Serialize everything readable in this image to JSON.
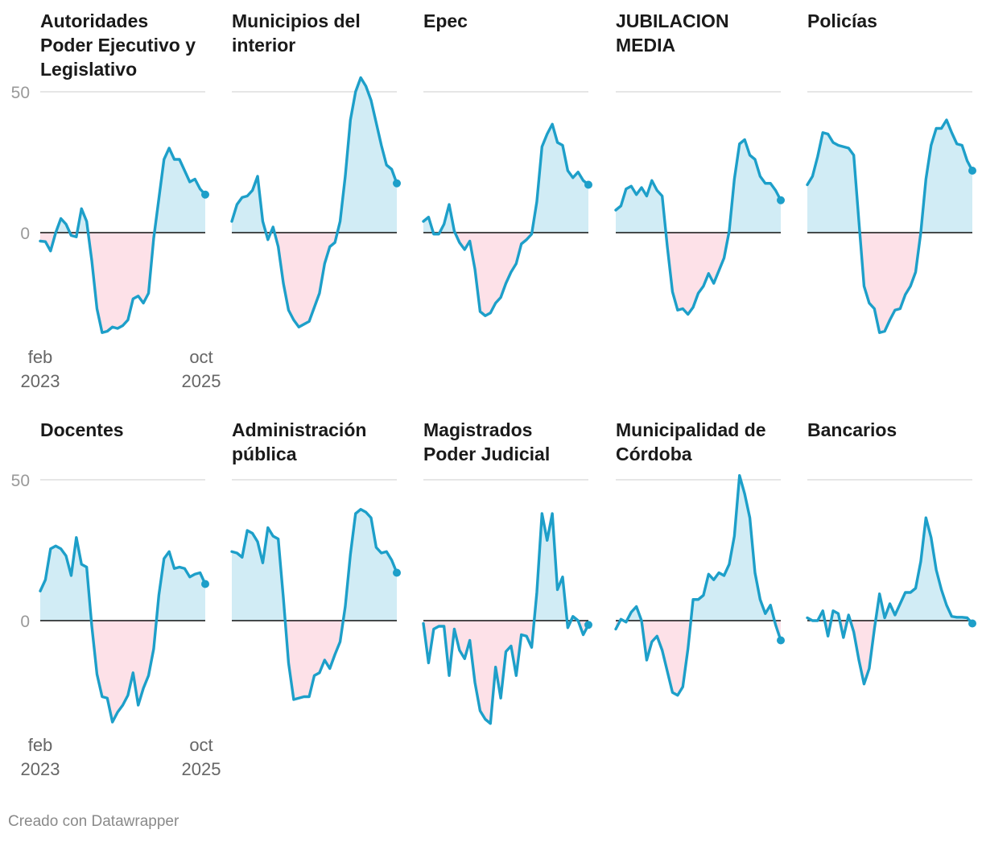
{
  "footer": "Creado con Datawrapper",
  "chart_data": {
    "type": "area",
    "ylim": [
      -40,
      50
    ],
    "y_ticks": [
      50,
      0
    ],
    "x_tick_labels": [
      {
        "month": "feb",
        "year": "2023"
      },
      {
        "month": "oct",
        "year": "2025"
      }
    ],
    "colors": {
      "line": "#1d9fc9",
      "positive_fill": "#d1ecf5",
      "negative_fill": "#fde1e8",
      "zero_line": "#111111",
      "grid": "#dddddd",
      "tick_text": "#999999",
      "axis_text": "#666666",
      "title_text": "#1a1a1a"
    },
    "panels": [
      {
        "title_lines": [
          "Autoridades",
          "Poder Ejecutivo y",
          "Legislativo"
        ],
        "values": [
          -3,
          -3.2,
          -6.5,
          0,
          5,
          3,
          -1,
          -1.5,
          8.5,
          4,
          -10,
          -27,
          -35.5,
          -35,
          -33.5,
          -34,
          -33,
          -31,
          -23.5,
          -22.5,
          -25,
          -21.5,
          -2,
          12,
          26,
          30,
          26,
          26,
          22,
          18,
          19,
          15.5,
          13.5
        ]
      },
      {
        "title_lines": [
          "Municipios del",
          "interior"
        ],
        "values": [
          4,
          10,
          12.5,
          13,
          15,
          20,
          4,
          -2.5,
          2,
          -5,
          -18,
          -27.5,
          -31,
          -33.5,
          -32.5,
          -31.5,
          -26.5,
          -21.5,
          -11,
          -5,
          -3.5,
          4,
          20,
          40,
          50,
          55,
          52,
          47,
          39,
          31,
          24,
          22.5,
          17.5
        ]
      },
      {
        "title_lines": [
          "Epec"
        ],
        "values": [
          4,
          5.5,
          -0.5,
          -0.5,
          3,
          10,
          0.5,
          -3.5,
          -6,
          -3,
          -13,
          -28,
          -29.5,
          -28.5,
          -25,
          -23,
          -18,
          -14,
          -11,
          -4,
          -2.5,
          -0.5,
          11,
          30.5,
          35,
          38.5,
          32,
          31,
          22,
          19.5,
          21.5,
          18.5,
          17
        ]
      },
      {
        "title_lines": [
          "JUBILACION",
          "MEDIA"
        ],
        "values": [
          8,
          9.5,
          15.5,
          16.5,
          13.5,
          16,
          13,
          18.5,
          15,
          13,
          -5,
          -21,
          -27.5,
          -27,
          -29,
          -26.5,
          -21.5,
          -19,
          -14.5,
          -18,
          -13.5,
          -9,
          0.5,
          19,
          31.5,
          33,
          27.5,
          26,
          20,
          17.5,
          17.5,
          15,
          11.5
        ]
      },
      {
        "title_lines": [
          "Policías"
        ],
        "values": [
          17,
          20,
          27,
          35.5,
          35,
          32,
          31,
          30.5,
          30,
          27.5,
          4,
          -19,
          -25,
          -27,
          -35.5,
          -35,
          -31,
          -27.5,
          -27,
          -22,
          -19,
          -14,
          0,
          19,
          31,
          37,
          37,
          40,
          35.5,
          31.5,
          31,
          25.5,
          22
        ]
      },
      {
        "title_lines": [
          "Docentes"
        ],
        "values": [
          10.5,
          14.5,
          25.5,
          26.5,
          25.5,
          23,
          16,
          29.5,
          20,
          19,
          -2,
          -19,
          -27,
          -27.5,
          -36,
          -32.5,
          -30,
          -26.5,
          -18.5,
          -30,
          -24,
          -19.5,
          -10,
          9,
          22,
          24.5,
          18.5,
          19,
          18.5,
          15.5,
          16.5,
          17,
          13
        ]
      },
      {
        "title_lines": [
          "Administración",
          "pública"
        ],
        "values": [
          24.5,
          24,
          22.5,
          32,
          31,
          28,
          20.5,
          33,
          30,
          29,
          8,
          -15,
          -28,
          -27.5,
          -27,
          -27,
          -19.5,
          -18.5,
          -14,
          -17,
          -12,
          -7.5,
          5,
          23.5,
          38,
          39.5,
          38.5,
          36.5,
          26,
          24,
          24.5,
          21.5,
          17
        ]
      },
      {
        "title_lines": [
          "Magistrados",
          "Poder Judicial"
        ],
        "values": [
          -1,
          -15,
          -3,
          -2,
          -2,
          -19.5,
          -3,
          -10.5,
          -13.5,
          -7,
          -22,
          -32,
          -35,
          -36.5,
          -16.5,
          -27.5,
          -11,
          -9,
          -19.5,
          -5,
          -5.5,
          -9.5,
          10,
          38,
          28.5,
          38,
          11,
          15.5,
          -2.5,
          1.5,
          0,
          -5,
          -1.5
        ]
      },
      {
        "title_lines": [
          "Municipalidad de",
          "Córdoba"
        ],
        "values": [
          -3,
          0.5,
          -0.5,
          3,
          5,
          0,
          -14,
          -7.5,
          -5.5,
          -10.5,
          -18,
          -25.5,
          -26.5,
          -23.5,
          -10,
          7.5,
          7.5,
          9,
          16.5,
          14.5,
          17,
          16,
          20,
          30,
          51.5,
          45,
          36.5,
          17,
          7.5,
          2.5,
          5.5,
          -1.5,
          -7
        ]
      },
      {
        "title_lines": [
          "Bancarios"
        ],
        "values": [
          1,
          0,
          0,
          3.5,
          -5.5,
          3.5,
          2.5,
          -6,
          2,
          -4,
          -14,
          -22.5,
          -17,
          -3,
          9.5,
          1,
          6,
          2,
          6,
          10,
          10,
          11.5,
          21,
          36.5,
          29.5,
          18,
          11,
          5.5,
          1.5,
          1.2,
          1.2,
          1,
          -1
        ]
      }
    ]
  }
}
